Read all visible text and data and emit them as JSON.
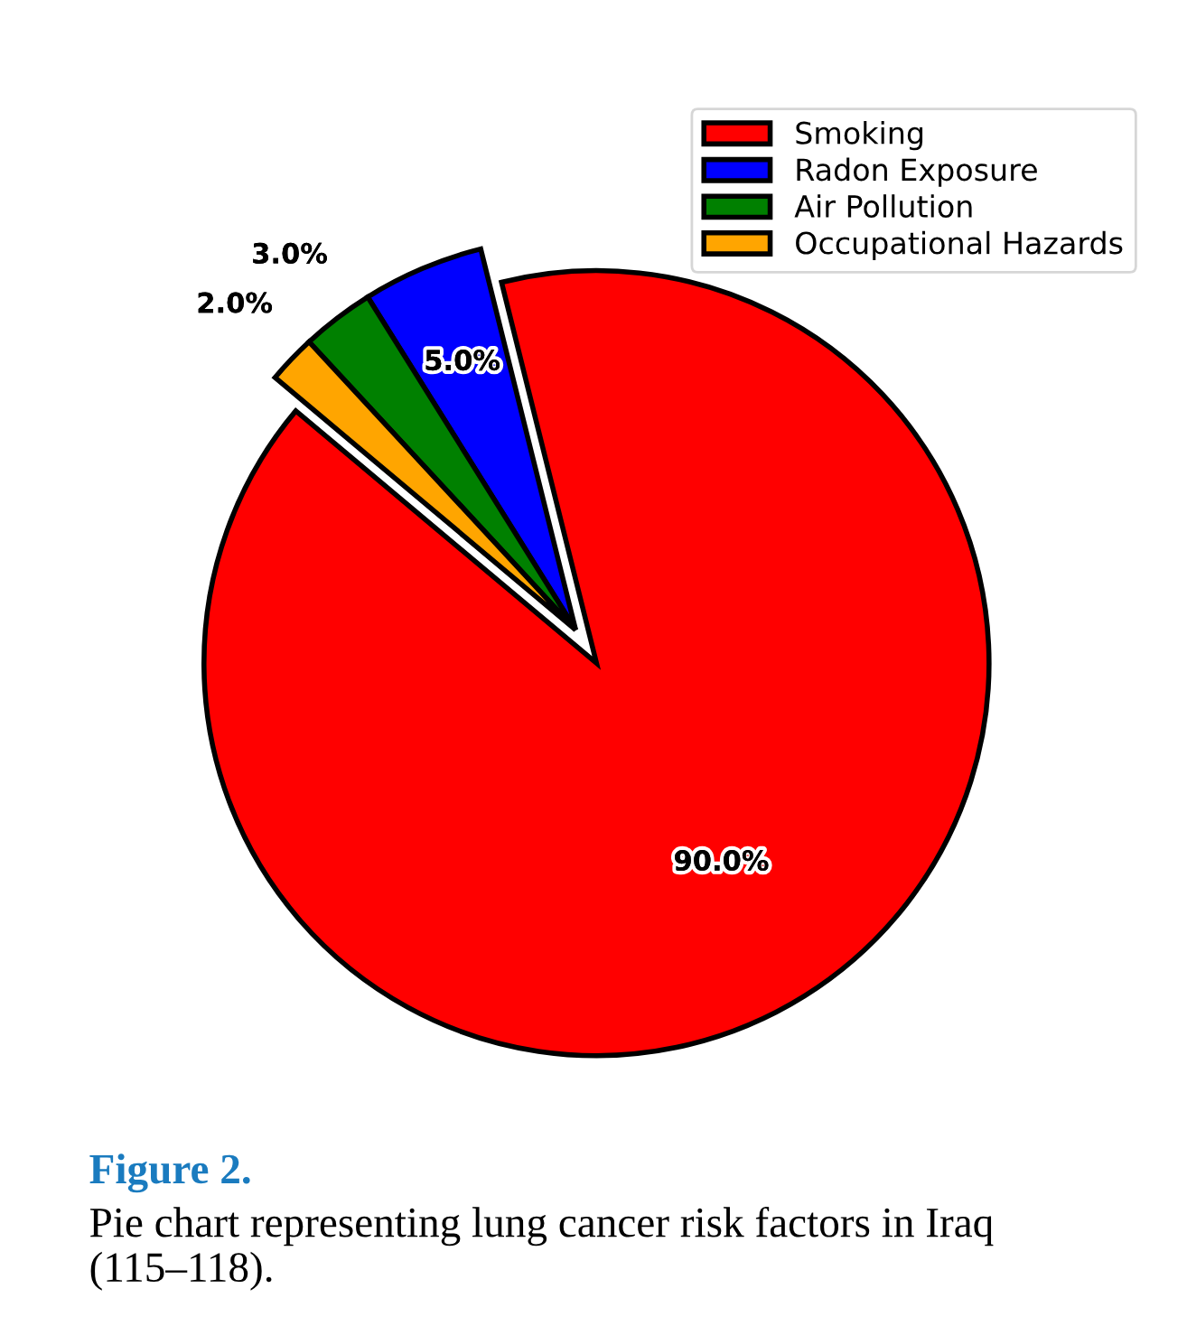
{
  "chart_data": {
    "type": "pie",
    "categories": [
      "Smoking",
      "Radon Exposure",
      "Air Pollution",
      "Occupational Hazards"
    ],
    "values": [
      90,
      5,
      3,
      2
    ],
    "colors": [
      "#ff0000",
      "#0000ff",
      "#008000",
      "#ffa500"
    ],
    "value_labels": [
      "90.0%",
      "5.0%",
      "3.0%",
      "2.0%"
    ],
    "legend": "top right",
    "annotations": [
      "Figure 2.",
      "Pie chart representing lung cancer risk factors in Iraq (115–118)."
    ]
  }
}
